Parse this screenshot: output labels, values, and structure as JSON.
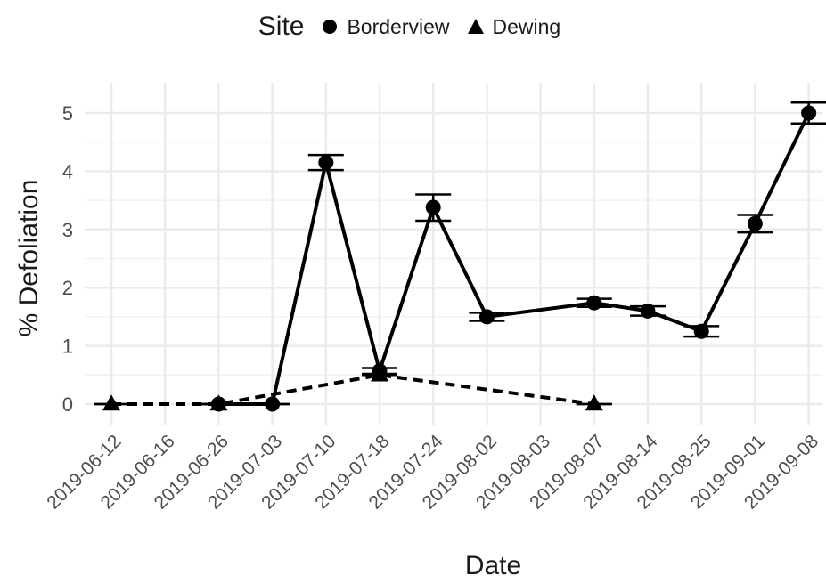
{
  "legend": {
    "title": "Site",
    "entries": [
      {
        "label": "Borderview",
        "shape": "circle-icon"
      },
      {
        "label": "Dewing",
        "shape": "triangle-icon"
      }
    ]
  },
  "chart_data": {
    "type": "line",
    "title": "",
    "xlabel": "Date",
    "ylabel": "% Defoliation",
    "categories": [
      "2019-06-12",
      "2019-06-16",
      "2019-06-26",
      "2019-07-03",
      "2019-07-10",
      "2019-07-18",
      "2019-07-24",
      "2019-08-02",
      "2019-08-03",
      "2019-08-07",
      "2019-08-14",
      "2019-08-25",
      "2019-09-01",
      "2019-09-08"
    ],
    "ylim": [
      -0.2,
      5.5
    ],
    "yticks": [
      0,
      1,
      2,
      3,
      4,
      5
    ],
    "grid": true,
    "legend_position": "top",
    "series": [
      {
        "name": "Borderview",
        "marker": "circle",
        "line_style": "solid",
        "points": [
          {
            "x": "2019-06-26",
            "y": 0,
            "ymin": 0,
            "ymax": 0
          },
          {
            "x": "2019-07-03",
            "y": 0,
            "ymin": 0,
            "ymax": 0
          },
          {
            "x": "2019-07-10",
            "y": 4.15,
            "ymin": 4.02,
            "ymax": 4.28
          },
          {
            "x": "2019-07-18",
            "y": 0.57,
            "ymin": 0.52,
            "ymax": 0.62
          },
          {
            "x": "2019-07-24",
            "y": 3.38,
            "ymin": 3.15,
            "ymax": 3.6
          },
          {
            "x": "2019-08-02",
            "y": 1.5,
            "ymin": 1.43,
            "ymax": 1.57
          },
          {
            "x": "2019-08-07",
            "y": 1.74,
            "ymin": 1.67,
            "ymax": 1.81
          },
          {
            "x": "2019-08-14",
            "y": 1.6,
            "ymin": 1.52,
            "ymax": 1.68
          },
          {
            "x": "2019-08-25",
            "y": 1.25,
            "ymin": 1.16,
            "ymax": 1.34
          },
          {
            "x": "2019-09-01",
            "y": 3.1,
            "ymin": 2.95,
            "ymax": 3.25
          },
          {
            "x": "2019-09-08",
            "y": 5.0,
            "ymin": 4.82,
            "ymax": 5.18
          }
        ]
      },
      {
        "name": "Dewing",
        "marker": "triangle",
        "line_style": "dashed",
        "points": [
          {
            "x": "2019-06-12",
            "y": 0,
            "ymin": 0,
            "ymax": 0
          },
          {
            "x": "2019-06-26",
            "y": 0,
            "ymin": 0,
            "ymax": 0
          },
          {
            "x": "2019-07-18",
            "y": 0.5,
            "ymin": 0.5,
            "ymax": 0.5
          },
          {
            "x": "2019-08-07",
            "y": 0,
            "ymin": 0,
            "ymax": 0
          }
        ]
      }
    ]
  }
}
